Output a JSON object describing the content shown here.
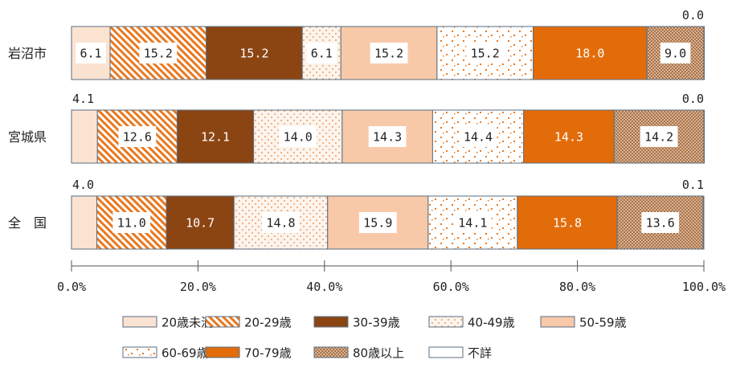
{
  "chart_data": {
    "type": "bar",
    "orientation": "horizontal-stacked-100",
    "title": "",
    "xlim": [
      0,
      100
    ],
    "x_ticks": [
      "0.0%",
      "20.0%",
      "40.0%",
      "60.0%",
      "80.0%",
      "100.0%"
    ],
    "categories": [
      "岩沼市",
      "宮城県",
      "全　国"
    ],
    "series": [
      {
        "name": "20歳未満",
        "color": "#fbe3d2",
        "pattern": "solid",
        "values": [
          6.1,
          4.1,
          4.0
        ]
      },
      {
        "name": "20-29歳",
        "color": "#e9781e",
        "pattern": "diagonal",
        "values": [
          15.2,
          12.6,
          11.0
        ]
      },
      {
        "name": "30-39歳",
        "color": "#8b4513",
        "pattern": "solid",
        "values": [
          15.2,
          12.1,
          10.7
        ]
      },
      {
        "name": "40-49歳",
        "color": "#e0935a",
        "pattern": "fine-dots",
        "values": [
          6.1,
          14.0,
          14.8
        ]
      },
      {
        "name": "50-59歳",
        "color": "#f8c9a8",
        "pattern": "solid",
        "values": [
          15.2,
          14.3,
          15.9
        ]
      },
      {
        "name": "60-69歳",
        "color": "#e9781e",
        "pattern": "sparse-dashes",
        "values": [
          15.2,
          14.4,
          14.1
        ]
      },
      {
        "name": "70-79歳",
        "color": "#e36c0a",
        "pattern": "solid",
        "values": [
          18.0,
          14.3,
          15.8
        ]
      },
      {
        "name": "80歳以上",
        "color": "#b8845c",
        "pattern": "crosshatch",
        "values": [
          9.0,
          14.2,
          13.6
        ]
      },
      {
        "name": "不詳",
        "color": "#ffffff",
        "pattern": "solid",
        "values": [
          0.0,
          0.0,
          0.1
        ]
      }
    ],
    "value_labels": [
      [
        "6.1",
        "15.2",
        "15.2",
        "6.1",
        "15.2",
        "15.2",
        "18.0",
        "9.0",
        "0.0"
      ],
      [
        "4.1",
        "12.6",
        "12.1",
        "14.0",
        "14.3",
        "14.4",
        "14.3",
        "14.2",
        "0.0"
      ],
      [
        "4.0",
        "11.0",
        "10.7",
        "14.8",
        "15.9",
        "14.1",
        "15.8",
        "13.6",
        "0.1"
      ]
    ],
    "outside_labels": {
      "series_indices": [
        0,
        8
      ]
    },
    "legend": {
      "position": "bottom",
      "rows": 2
    }
  }
}
